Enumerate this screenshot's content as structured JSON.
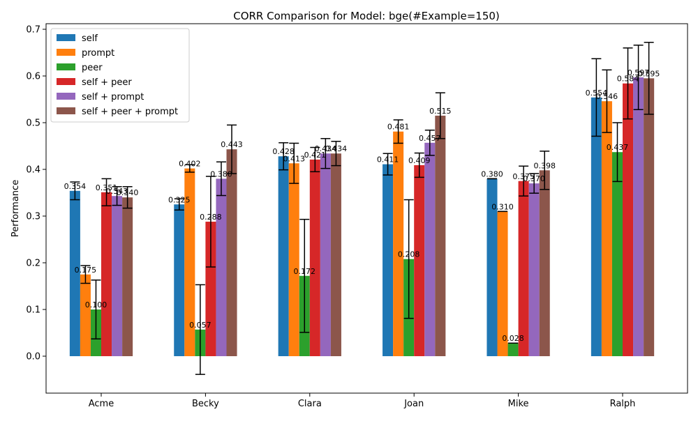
{
  "chart_data": {
    "type": "bar",
    "title": "CORR Comparison for Model: bge(#Example=150)",
    "xlabel": "",
    "ylabel": "Performance",
    "ylim": [
      -0.075,
      0.71
    ],
    "yticks": [
      "0.0",
      "0.1",
      "0.2",
      "0.3",
      "0.4",
      "0.5",
      "0.6",
      "0.7"
    ],
    "grid": false,
    "legend_position": "top-left",
    "categories": [
      "Acme",
      "Becky",
      "Clara",
      "Joan",
      "Mike",
      "Ralph"
    ],
    "series": [
      {
        "name": "self",
        "color": "#1f77b4",
        "values": [
          0.354,
          0.325,
          0.428,
          0.411,
          0.38,
          0.554
        ],
        "labels": [
          "0.354",
          "0.325",
          "0.428",
          "0.411",
          "0.380",
          "0.554"
        ],
        "err": [
          0.019,
          0.012,
          0.029,
          0.023,
          0.0,
          0.083
        ]
      },
      {
        "name": "prompt",
        "color": "#ff7f0e",
        "values": [
          0.175,
          0.402,
          0.413,
          0.481,
          0.31,
          0.546
        ],
        "labels": [
          "0.175",
          "0.402",
          "0.413",
          "0.481",
          "0.310",
          "0.546"
        ],
        "err": [
          0.019,
          0.008,
          0.043,
          0.025,
          0.0,
          0.067
        ]
      },
      {
        "name": "peer",
        "color": "#2ca02c",
        "values": [
          0.1,
          0.057,
          0.172,
          0.208,
          0.028,
          0.437
        ],
        "labels": [
          "0.100",
          "0.057",
          "0.172",
          "0.208",
          "0.028",
          "0.437"
        ],
        "err": [
          0.063,
          0.096,
          0.121,
          0.127,
          0.0,
          0.063
        ]
      },
      {
        "name": "self + peer",
        "color": "#d62728",
        "values": [
          0.351,
          0.288,
          0.421,
          0.409,
          0.375,
          0.584
        ],
        "labels": [
          "0.351",
          "0.288",
          "0.421",
          "0.409",
          "0.375",
          "0.584"
        ],
        "err": [
          0.029,
          0.097,
          0.026,
          0.026,
          0.032,
          0.076
        ]
      },
      {
        "name": "self + prompt",
        "color": "#9467bd",
        "values": [
          0.343,
          0.38,
          0.434,
          0.457,
          0.37,
          0.597
        ],
        "labels": [
          "0.343",
          "0.380",
          "0.434",
          "0.457",
          "0.370",
          "0.597"
        ],
        "err": [
          0.02,
          0.036,
          0.032,
          0.027,
          0.021,
          0.069
        ]
      },
      {
        "name": "self + peer + prompt",
        "color": "#8c564b",
        "values": [
          0.34,
          0.443,
          0.434,
          0.515,
          0.398,
          0.595
        ],
        "labels": [
          "0.340",
          "0.443",
          "0.434",
          "0.515",
          "0.398",
          "0.595"
        ],
        "err": [
          0.023,
          0.052,
          0.026,
          0.049,
          0.041,
          0.077
        ]
      }
    ]
  }
}
